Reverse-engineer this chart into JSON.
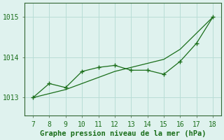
{
  "x": [
    7,
    8,
    9,
    10,
    11,
    12,
    13,
    14,
    15,
    16,
    17,
    18
  ],
  "y_markers": [
    1013.0,
    1013.35,
    1013.25,
    1013.65,
    1013.75,
    1013.8,
    1013.68,
    1013.68,
    1013.58,
    1013.9,
    1014.35,
    1015.0
  ],
  "y_smooth": [
    1013.0,
    1013.1,
    1013.2,
    1013.35,
    1013.5,
    1013.65,
    1013.75,
    1013.85,
    1013.95,
    1014.2,
    1014.6,
    1015.0
  ],
  "line_color": "#1a6e1a",
  "bg_color": "#dff2ee",
  "grid_color": "#b8ddd6",
  "xlabel": "Graphe pression niveau de la mer (hPa)",
  "xlim": [
    6.5,
    18.5
  ],
  "ylim": [
    1012.55,
    1015.35
  ],
  "yticks": [
    1013,
    1014,
    1015
  ],
  "xticks": [
    7,
    8,
    9,
    10,
    11,
    12,
    13,
    14,
    15,
    16,
    17,
    18
  ],
  "tick_fontsize": 7,
  "xlabel_fontsize": 7.5
}
